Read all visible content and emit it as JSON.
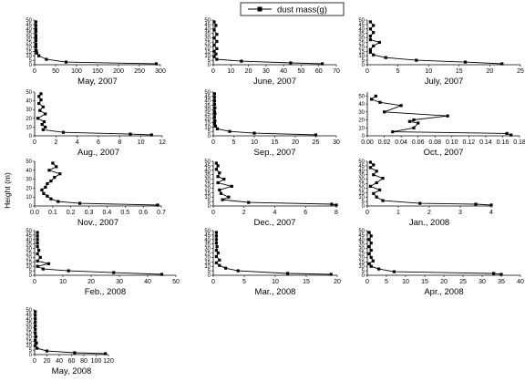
{
  "figure": {
    "ylabel": "Height (m)",
    "legend": {
      "label": "dust  mass(g)",
      "placement": "top-center"
    }
  },
  "chart_data": [
    {
      "type": "line",
      "title": "May, 2007",
      "xlim": [
        0,
        300
      ],
      "xticks": [
        0,
        50,
        100,
        150,
        200,
        250,
        300
      ],
      "ylim": [
        0,
        50
      ],
      "yticks": [
        0,
        5,
        10,
        15,
        20,
        25,
        30,
        35,
        40,
        45,
        50
      ],
      "series": [
        {
          "name": "dust  mass(g)",
          "x": [
            290,
            75,
            28,
            10,
            5,
            4,
            3,
            3,
            3,
            3,
            3,
            3,
            3,
            3,
            3
          ],
          "y": [
            1,
            3,
            6,
            10,
            13,
            16,
            20,
            23,
            27,
            30,
            33,
            37,
            40,
            44,
            48
          ]
        }
      ]
    },
    {
      "type": "line",
      "title": "June, 2007",
      "xlim": [
        0,
        70
      ],
      "xticks": [
        0,
        10,
        20,
        30,
        40,
        50,
        60,
        70
      ],
      "ylim": [
        0,
        50
      ],
      "yticks": [
        0,
        5,
        10,
        15,
        20,
        25,
        30,
        35,
        40,
        45,
        50
      ],
      "series": [
        {
          "name": "dust  mass(g)",
          "x": [
            62,
            44,
            16,
            2,
            0.5,
            1.5,
            0.5,
            2,
            0.5,
            2,
            0.5,
            2,
            0.5,
            1.5,
            0.5
          ],
          "y": [
            1,
            2,
            4,
            6,
            9,
            12,
            15,
            18,
            22,
            26,
            30,
            34,
            39,
            44,
            48
          ]
        }
      ]
    },
    {
      "type": "line",
      "title": "July, 2007",
      "xlim": [
        0,
        25
      ],
      "xticks": [
        0,
        5,
        10,
        15,
        20,
        25
      ],
      "ylim": [
        0,
        50
      ],
      "yticks": [
        0,
        5,
        10,
        15,
        20,
        25,
        30,
        35,
        40,
        45,
        50
      ],
      "series": [
        {
          "name": "dust  mass(g)",
          "x": [
            22,
            16,
            8,
            3,
            1,
            0.5,
            0.5,
            1,
            2,
            0.5,
            0.5,
            1,
            0.5,
            1,
            0.5
          ],
          "y": [
            1,
            3,
            5,
            8,
            11,
            14,
            17,
            21,
            25,
            28,
            32,
            36,
            40,
            44,
            48
          ]
        }
      ]
    },
    {
      "type": "line",
      "title": "Aug., 2007",
      "xlim": [
        0,
        12
      ],
      "xticks": [
        0,
        2,
        4,
        6,
        8,
        10,
        12
      ],
      "ylim": [
        0,
        50
      ],
      "yticks": [
        0,
        10,
        20,
        30,
        40,
        50
      ],
      "series": [
        {
          "name": "dust  mass(g)",
          "x": [
            11,
            9,
            2.7,
            0.8,
            1,
            0.7,
            0.9,
            0.3,
            1,
            0.5,
            0.8,
            0.4,
            0.6,
            0.4,
            0.6
          ],
          "y": [
            1,
            2,
            4,
            7,
            10,
            13,
            16,
            20,
            25,
            29,
            33,
            37,
            41,
            45,
            48
          ]
        }
      ]
    },
    {
      "type": "line",
      "title": "Sep., 2007",
      "xlim": [
        0,
        30
      ],
      "xticks": [
        0,
        5,
        10,
        15,
        20,
        25,
        30
      ],
      "ylim": [
        0,
        50
      ],
      "yticks": [
        0,
        5,
        10,
        15,
        20,
        25,
        30,
        35,
        40,
        45,
        50
      ],
      "series": [
        {
          "name": "dust  mass(g)",
          "x": [
            25,
            10,
            4,
            1,
            0.5,
            0.3,
            0.4,
            0.3,
            0.4,
            0.3,
            0.4,
            0.3,
            0.3,
            0.3,
            0.3
          ],
          "y": [
            1,
            3,
            5,
            8,
            11,
            14,
            17,
            21,
            25,
            28,
            32,
            36,
            40,
            44,
            48
          ]
        }
      ]
    },
    {
      "type": "line",
      "title": "Oct., 2007",
      "xlim": [
        0,
        0.18
      ],
      "xticks": [
        0,
        0.02,
        0.04,
        0.06,
        0.08,
        0.1,
        0.12,
        0.14,
        0.16,
        0.18
      ],
      "xtick_labels": [
        "0.00",
        "0.02",
        "0.04",
        "0.06",
        "0.08",
        "0.10",
        "0.12",
        "0.14",
        "0.16",
        "0.18"
      ],
      "ylim": [
        0,
        55
      ],
      "yticks": [
        0,
        10,
        20,
        30,
        40,
        50
      ],
      "series": [
        {
          "name": "dust  mass(g)",
          "x": [
            0.17,
            0.165,
            0.03,
            0.055,
            0.06,
            0.05,
            0.055,
            0.095,
            0.02,
            0.04,
            0.015,
            0.005,
            0.01
          ],
          "y": [
            1,
            3,
            5,
            10,
            16,
            18,
            20,
            25,
            30,
            38,
            42,
            46,
            50
          ]
        }
      ]
    },
    {
      "type": "line",
      "title": "Nov., 2007",
      "xlim": [
        0,
        0.7
      ],
      "xticks": [
        0,
        0.1,
        0.2,
        0.3,
        0.4,
        0.5,
        0.6,
        0.7
      ],
      "xtick_labels": [
        "0.0",
        "0.1",
        "0.2",
        "0.3",
        "0.4",
        "0.5",
        "0.6",
        "0.7"
      ],
      "ylim": [
        0,
        50
      ],
      "yticks": [
        0,
        10,
        20,
        30,
        40,
        50
      ],
      "series": [
        {
          "name": "dust  mass(g)",
          "x": [
            0.68,
            0.25,
            0.13,
            0.09,
            0.07,
            0.05,
            0.04,
            0.06,
            0.07,
            0.09,
            0.11,
            0.14,
            0.08,
            0.12,
            0.1
          ],
          "y": [
            1,
            3,
            5,
            8,
            11,
            14,
            18,
            21,
            25,
            28,
            32,
            36,
            40,
            44,
            48
          ]
        }
      ]
    },
    {
      "type": "line",
      "title": "Dec., 2007",
      "xlim": [
        0,
        8
      ],
      "xticks": [
        0,
        2,
        4,
        6,
        8
      ],
      "ylim": [
        0,
        50
      ],
      "yticks": [
        0,
        5,
        10,
        15,
        20,
        25,
        30,
        35,
        40,
        45,
        50
      ],
      "series": [
        {
          "name": "dust  mass(g)",
          "x": [
            8,
            7.7,
            2.3,
            0.6,
            1,
            0.5,
            0.4,
            1.2,
            0.3,
            0.7,
            0.3,
            0.4,
            0.2,
            0.3,
            0.2
          ],
          "y": [
            1,
            2,
            4,
            7,
            10,
            14,
            18,
            22,
            26,
            30,
            33,
            37,
            41,
            45,
            48
          ]
        }
      ]
    },
    {
      "type": "line",
      "title": "Jan., 2008",
      "xlim": [
        0,
        4
      ],
      "xticks": [
        0,
        1,
        2,
        3,
        4
      ],
      "ylim": [
        0,
        50
      ],
      "yticks": [
        0,
        5,
        10,
        15,
        20,
        25,
        30,
        35,
        40,
        45,
        50
      ],
      "series": [
        {
          "name": "dust  mass(g)",
          "x": [
            4,
            3.5,
            1.7,
            0.5,
            0.3,
            0.2,
            0.4,
            0.1,
            0.3,
            0.5,
            0.2,
            0.3,
            0.1,
            0.2,
            0.1
          ],
          "y": [
            1,
            2,
            3,
            6,
            10,
            14,
            18,
            22,
            26,
            31,
            35,
            39,
            43,
            46,
            49
          ]
        }
      ]
    },
    {
      "type": "line",
      "title": "Feb., 2008",
      "xlim": [
        0,
        50
      ],
      "xticks": [
        0,
        10,
        20,
        30,
        40,
        50
      ],
      "ylim": [
        0,
        50
      ],
      "yticks": [
        0,
        5,
        10,
        15,
        20,
        25,
        30,
        35,
        40,
        45,
        50
      ],
      "series": [
        {
          "name": "dust  mass(g)",
          "x": [
            45,
            28,
            12,
            3,
            1,
            5,
            1,
            2,
            1,
            1.5,
            1,
            1,
            1,
            1,
            1
          ],
          "y": [
            1,
            3,
            5,
            7,
            10,
            13,
            16,
            20,
            24,
            28,
            32,
            36,
            40,
            44,
            48
          ]
        }
      ]
    },
    {
      "type": "line",
      "title": "Mar., 2008",
      "xlim": [
        0,
        20
      ],
      "xticks": [
        0,
        5,
        10,
        15,
        20
      ],
      "ylim": [
        0,
        50
      ],
      "yticks": [
        0,
        5,
        10,
        15,
        20,
        25,
        30,
        35,
        40,
        45,
        50
      ],
      "series": [
        {
          "name": "dust  mass(g)",
          "x": [
            19,
            12,
            4,
            2,
            1,
            0.5,
            1,
            0.5,
            0.8,
            0.5,
            0.6,
            0.5,
            0.5,
            0.5,
            0.5
          ],
          "y": [
            1,
            2,
            5,
            8,
            11,
            14,
            17,
            21,
            25,
            28,
            32,
            36,
            40,
            44,
            48
          ]
        }
      ]
    },
    {
      "type": "line",
      "title": "Apr., 2008",
      "xlim": [
        0,
        40
      ],
      "xticks": [
        0,
        5,
        10,
        15,
        20,
        25,
        30,
        35,
        40
      ],
      "ylim": [
        0,
        50
      ],
      "yticks": [
        0,
        5,
        10,
        15,
        20,
        25,
        30,
        35,
        40,
        45,
        50
      ],
      "series": [
        {
          "name": "dust  mass(g)",
          "x": [
            35,
            33,
            7,
            3,
            1,
            0.5,
            1.5,
            1,
            0.5,
            1,
            0.5,
            1,
            0.5,
            1,
            0.5
          ],
          "y": [
            1,
            2,
            4,
            7,
            10,
            13,
            16,
            20,
            24,
            28,
            32,
            36,
            40,
            44,
            48
          ]
        }
      ]
    },
    {
      "type": "line",
      "title": "May, 2008",
      "xlim": [
        0,
        120
      ],
      "xticks": [
        0,
        20,
        40,
        60,
        80,
        100,
        120
      ],
      "ylim": [
        0,
        50
      ],
      "yticks": [
        0,
        5,
        10,
        15,
        20,
        25,
        30,
        35,
        40,
        45,
        50
      ],
      "series": [
        {
          "name": "dust  mass(g)",
          "x": [
            115,
            65,
            20,
            4,
            1,
            3,
            1,
            2,
            1,
            1,
            1,
            1,
            1,
            1,
            1
          ],
          "y": [
            1,
            2,
            4,
            7,
            10,
            13,
            16,
            20,
            24,
            28,
            32,
            36,
            40,
            44,
            48
          ]
        }
      ]
    }
  ]
}
